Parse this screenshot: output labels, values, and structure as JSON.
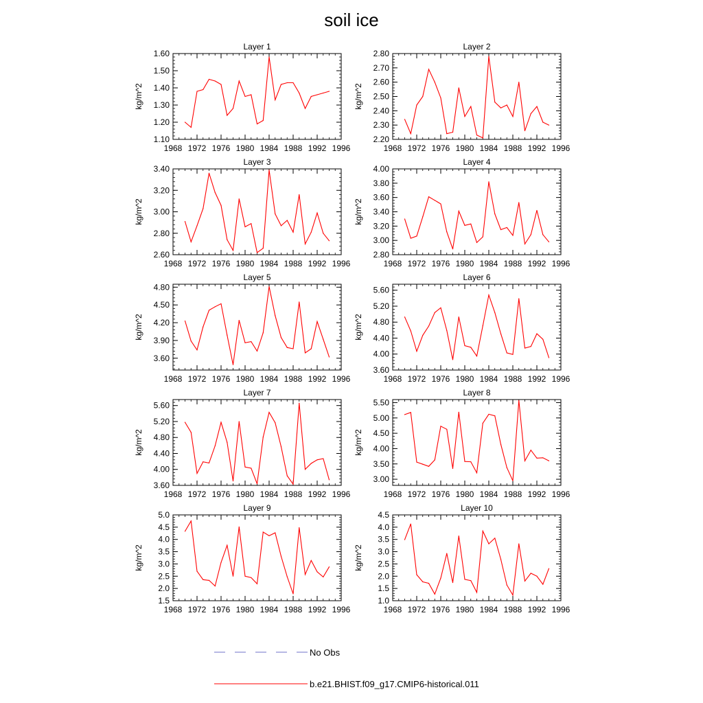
{
  "title": "soil ice",
  "colors": {
    "series": "#ff0000",
    "obs": "#6f72c9",
    "axis": "#000000"
  },
  "legend": {
    "placement": "bottom",
    "items": [
      {
        "label": "No Obs",
        "style": "dashed",
        "color": "#6f72c9"
      },
      {
        "label": "b.e21.BHIST.f09_g17.CMIP6-historical.011",
        "style": "solid",
        "color": "#ff0000"
      }
    ]
  },
  "chart_data": [
    {
      "type": "line",
      "title": "Layer 1",
      "xlabel": "",
      "ylabel": "kg/m^2",
      "xlim": [
        1968,
        1996
      ],
      "xticks": [
        1968,
        1972,
        1976,
        1980,
        1984,
        1988,
        1992,
        1996
      ],
      "ylim": [
        1.1,
        1.6
      ],
      "yticks": [
        "1.10",
        "1.20",
        "1.30",
        "1.40",
        "1.50",
        "1.60"
      ],
      "x": [
        1970,
        1971,
        1972,
        1973,
        1974,
        1975,
        1976,
        1977,
        1978,
        1979,
        1980,
        1981,
        1982,
        1983,
        1984,
        1985,
        1986,
        1987,
        1988,
        1989,
        1990,
        1991,
        1992,
        1993,
        1994
      ],
      "series": [
        {
          "values": [
            1.2,
            1.17,
            1.38,
            1.39,
            1.45,
            1.44,
            1.42,
            1.24,
            1.28,
            1.44,
            1.35,
            1.36,
            1.19,
            1.21,
            1.58,
            1.33,
            1.42,
            1.43,
            1.43,
            1.37,
            1.28,
            1.35,
            1.36,
            1.37,
            1.38
          ]
        }
      ]
    },
    {
      "type": "line",
      "title": "Layer 2",
      "xlabel": "",
      "ylabel": "kg/m^2",
      "xlim": [
        1968,
        1996
      ],
      "xticks": [
        1968,
        1972,
        1976,
        1980,
        1984,
        1988,
        1992,
        1996
      ],
      "ylim": [
        2.2,
        2.8
      ],
      "yticks": [
        "2.20",
        "2.30",
        "2.40",
        "2.50",
        "2.60",
        "2.70",
        "2.80"
      ],
      "x": [
        1970,
        1971,
        1972,
        1973,
        1974,
        1975,
        1976,
        1977,
        1978,
        1979,
        1980,
        1981,
        1982,
        1983,
        1984,
        1985,
        1986,
        1987,
        1988,
        1989,
        1990,
        1991,
        1992,
        1993,
        1994
      ],
      "series": [
        {
          "values": [
            2.34,
            2.24,
            2.44,
            2.5,
            2.69,
            2.6,
            2.49,
            2.24,
            2.25,
            2.56,
            2.36,
            2.43,
            2.23,
            2.21,
            2.78,
            2.46,
            2.42,
            2.44,
            2.36,
            2.6,
            2.26,
            2.38,
            2.43,
            2.32,
            2.3
          ]
        }
      ]
    },
    {
      "type": "line",
      "title": "Layer 3",
      "xlabel": "",
      "ylabel": "kg/m^2",
      "xlim": [
        1968,
        1996
      ],
      "xticks": [
        1968,
        1972,
        1976,
        1980,
        1984,
        1988,
        1992,
        1996
      ],
      "ylim": [
        2.6,
        3.4
      ],
      "yticks": [
        "2.60",
        "2.80",
        "3.00",
        "3.20",
        "3.40"
      ],
      "x": [
        1970,
        1971,
        1972,
        1973,
        1974,
        1975,
        1976,
        1977,
        1978,
        1979,
        1980,
        1981,
        1982,
        1983,
        1984,
        1985,
        1986,
        1987,
        1988,
        1989,
        1990,
        1991,
        1992,
        1993,
        1994
      ],
      "series": [
        {
          "values": [
            2.91,
            2.72,
            2.87,
            3.03,
            3.36,
            3.18,
            3.06,
            2.74,
            2.64,
            3.12,
            2.86,
            2.89,
            2.62,
            2.66,
            3.39,
            2.98,
            2.87,
            2.92,
            2.81,
            3.16,
            2.7,
            2.81,
            2.99,
            2.8,
            2.73
          ]
        }
      ]
    },
    {
      "type": "line",
      "title": "Layer 4",
      "xlabel": "",
      "ylabel": "kg/m^2",
      "xlim": [
        1968,
        1996
      ],
      "xticks": [
        1968,
        1972,
        1976,
        1980,
        1984,
        1988,
        1992,
        1996
      ],
      "ylim": [
        2.8,
        4.0
      ],
      "yticks": [
        "2.80",
        "3.00",
        "3.20",
        "3.40",
        "3.60",
        "3.80",
        "4.00"
      ],
      "x": [
        1970,
        1971,
        1972,
        1973,
        1974,
        1975,
        1976,
        1977,
        1978,
        1979,
        1980,
        1981,
        1982,
        1983,
        1984,
        1985,
        1986,
        1987,
        1988,
        1989,
        1990,
        1991,
        1992,
        1993,
        1994
      ],
      "series": [
        {
          "values": [
            3.3,
            3.03,
            3.06,
            3.33,
            3.61,
            3.56,
            3.51,
            3.12,
            2.88,
            3.41,
            3.21,
            3.23,
            2.97,
            3.05,
            3.82,
            3.37,
            3.15,
            3.18,
            3.07,
            3.53,
            2.95,
            3.08,
            3.42,
            3.08,
            2.98
          ]
        }
      ]
    },
    {
      "type": "line",
      "title": "Layer 5",
      "xlabel": "",
      "ylabel": "kg/m^2",
      "xlim": [
        1968,
        1996
      ],
      "xticks": [
        1968,
        1972,
        1976,
        1980,
        1984,
        1988,
        1992,
        1996
      ],
      "ylim": [
        3.4,
        4.85
      ],
      "yticks": [
        "3.60",
        "3.90",
        "4.20",
        "4.50",
        "4.80"
      ],
      "x": [
        1970,
        1971,
        1972,
        1973,
        1974,
        1975,
        1976,
        1977,
        1978,
        1979,
        1980,
        1981,
        1982,
        1983,
        1984,
        1985,
        1986,
        1987,
        1988,
        1989,
        1990,
        1991,
        1992,
        1993,
        1994
      ],
      "series": [
        {
          "values": [
            4.23,
            3.89,
            3.74,
            4.13,
            4.41,
            4.47,
            4.52,
            3.99,
            3.49,
            4.24,
            3.86,
            3.88,
            3.72,
            4.03,
            4.81,
            4.32,
            3.95,
            3.78,
            3.76,
            4.55,
            3.69,
            3.76,
            4.22,
            3.92,
            3.62
          ]
        }
      ]
    },
    {
      "type": "line",
      "title": "Layer 6",
      "xlabel": "",
      "ylabel": "kg/m^2",
      "xlim": [
        1968,
        1996
      ],
      "xticks": [
        1968,
        1972,
        1976,
        1980,
        1984,
        1988,
        1992,
        1996
      ],
      "ylim": [
        3.6,
        5.75
      ],
      "yticks": [
        "3.60",
        "4.00",
        "4.40",
        "4.80",
        "5.20",
        "5.60"
      ],
      "x": [
        1970,
        1971,
        1972,
        1973,
        1974,
        1975,
        1976,
        1977,
        1978,
        1979,
        1980,
        1981,
        1982,
        1983,
        1984,
        1985,
        1986,
        1987,
        1988,
        1989,
        1990,
        1991,
        1992,
        1993,
        1994
      ],
      "series": [
        {
          "values": [
            4.93,
            4.58,
            4.07,
            4.47,
            4.7,
            5.04,
            5.16,
            4.59,
            3.86,
            4.93,
            4.21,
            4.17,
            3.95,
            4.71,
            5.48,
            5.04,
            4.51,
            4.03,
            3.99,
            5.39,
            4.15,
            4.19,
            4.51,
            4.37,
            3.91
          ]
        }
      ]
    },
    {
      "type": "line",
      "title": "Layer 7",
      "xlabel": "",
      "ylabel": "kg/m^2",
      "xlim": [
        1968,
        1996
      ],
      "xticks": [
        1968,
        1972,
        1976,
        1980,
        1984,
        1988,
        1992,
        1996
      ],
      "ylim": [
        3.6,
        5.75
      ],
      "yticks": [
        "3.60",
        "4.00",
        "4.40",
        "4.80",
        "5.20",
        "5.60"
      ],
      "x": [
        1970,
        1971,
        1972,
        1973,
        1974,
        1975,
        1976,
        1977,
        1978,
        1979,
        1980,
        1981,
        1982,
        1983,
        1984,
        1985,
        1986,
        1987,
        1988,
        1989,
        1990,
        1991,
        1992,
        1993,
        1994
      ],
      "series": [
        {
          "values": [
            5.18,
            4.93,
            3.9,
            4.19,
            4.16,
            4.59,
            5.18,
            4.68,
            3.71,
            5.2,
            4.06,
            4.03,
            3.64,
            4.81,
            5.43,
            5.17,
            4.57,
            3.84,
            3.63,
            5.66,
            4.0,
            4.15,
            4.24,
            4.27,
            3.74
          ]
        }
      ]
    },
    {
      "type": "line",
      "title": "Layer 8",
      "xlabel": "",
      "ylabel": "kg/m^2",
      "xlim": [
        1968,
        1996
      ],
      "xticks": [
        1968,
        1972,
        1976,
        1980,
        1984,
        1988,
        1992,
        1996
      ],
      "ylim": [
        2.8,
        5.6
      ],
      "yticks": [
        "3.00",
        "3.50",
        "4.00",
        "4.50",
        "5.00",
        "5.50"
      ],
      "x": [
        1970,
        1971,
        1972,
        1973,
        1974,
        1975,
        1976,
        1977,
        1978,
        1979,
        1980,
        1981,
        1982,
        1983,
        1984,
        1985,
        1986,
        1987,
        1988,
        1989,
        1990,
        1991,
        1992,
        1993,
        1994
      ],
      "series": [
        {
          "values": [
            5.11,
            5.18,
            3.56,
            3.49,
            3.42,
            3.63,
            4.73,
            4.63,
            3.35,
            5.19,
            3.58,
            3.57,
            3.21,
            4.83,
            5.12,
            5.07,
            4.14,
            3.38,
            2.95,
            5.57,
            3.6,
            3.95,
            3.69,
            3.7,
            3.6
          ]
        }
      ]
    },
    {
      "type": "line",
      "title": "Layer 9",
      "xlabel": "",
      "ylabel": "kg/m^2",
      "xlim": [
        1968,
        1996
      ],
      "xticks": [
        1968,
        1972,
        1976,
        1980,
        1984,
        1988,
        1992,
        1996
      ],
      "ylim": [
        1.5,
        5.0
      ],
      "yticks": [
        "1.5",
        "2.0",
        "2.5",
        "3.0",
        "3.5",
        "4.0",
        "4.5",
        "5.0"
      ],
      "x": [
        1970,
        1971,
        1972,
        1973,
        1974,
        1975,
        1976,
        1977,
        1978,
        1979,
        1980,
        1981,
        1982,
        1983,
        1984,
        1985,
        1986,
        1987,
        1988,
        1989,
        1990,
        1991,
        1992,
        1993,
        1994
      ],
      "series": [
        {
          "values": [
            4.33,
            4.75,
            2.7,
            2.36,
            2.33,
            2.1,
            3.06,
            3.76,
            2.5,
            4.51,
            2.5,
            2.44,
            2.19,
            4.3,
            4.15,
            4.27,
            3.31,
            2.48,
            1.78,
            4.48,
            2.57,
            3.14,
            2.68,
            2.47,
            2.88
          ]
        }
      ]
    },
    {
      "type": "line",
      "title": "Layer 10",
      "xlabel": "",
      "ylabel": "kg/m^2",
      "xlim": [
        1968,
        1996
      ],
      "xticks": [
        1968,
        1972,
        1976,
        1980,
        1984,
        1988,
        1992,
        1996
      ],
      "ylim": [
        1.0,
        4.5
      ],
      "yticks": [
        "1.0",
        "1.5",
        "2.0",
        "2.5",
        "3.0",
        "3.5",
        "4.0",
        "4.5"
      ],
      "x": [
        1970,
        1971,
        1972,
        1973,
        1974,
        1975,
        1976,
        1977,
        1978,
        1979,
        1980,
        1981,
        1982,
        1983,
        1984,
        1985,
        1986,
        1987,
        1988,
        1989,
        1990,
        1991,
        1992,
        1993,
        1994
      ],
      "series": [
        {
          "values": [
            3.49,
            4.13,
            2.06,
            1.77,
            1.71,
            1.27,
            1.92,
            2.93,
            1.74,
            3.64,
            1.87,
            1.82,
            1.34,
            3.84,
            3.32,
            3.55,
            2.69,
            1.64,
            1.23,
            3.32,
            1.8,
            2.12,
            2.0,
            1.67,
            2.31
          ]
        }
      ]
    }
  ]
}
